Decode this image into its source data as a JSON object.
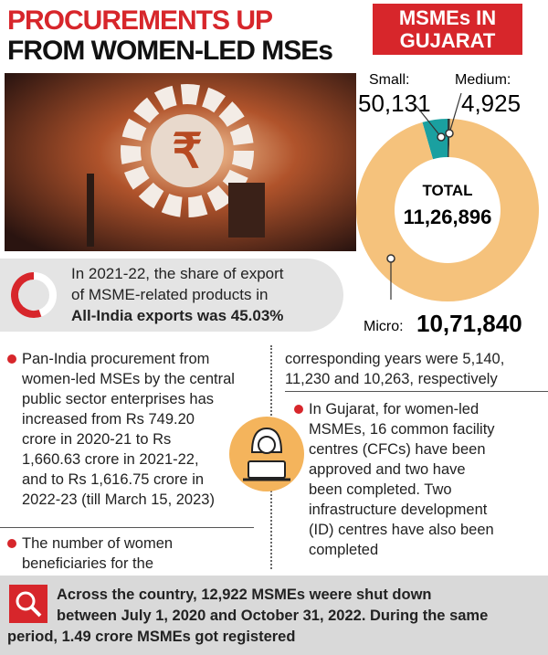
{
  "header": {
    "title_lines": [
      "PROCUREMENTS UP",
      "FROM WOMEN-LED MSEs"
    ],
    "badge_lines": [
      "MSMEs IN",
      "GUJARAT"
    ]
  },
  "chart_data": {
    "type": "pie",
    "categories": [
      "Small:",
      "Medium:",
      "Micro:"
    ],
    "values": [
      50131,
      4925,
      1071840
    ],
    "value_labels": [
      "50,131",
      "4,925",
      "10,71,840"
    ],
    "colors": [
      "#1aa0a0",
      "#2b3a3a",
      "#f5c27c"
    ],
    "center_title": "TOTAL",
    "total": {
      "value": 1126896,
      "label": "11,26,896"
    }
  },
  "export_note": {
    "lines": [
      "In 2021-22, the share of export",
      "of MSME-related products in"
    ],
    "bold_line": "All-India exports was 45.03%"
  },
  "left_column": {
    "bullet1": [
      "Pan-India procurement from",
      "women-led MSEs by the central",
      "public sector enterprises has",
      "increased from Rs 749.20",
      "crore in 2020-21 to Rs",
      "1,660.63 crore in 2021-22,",
      "and to Rs 1,616.75 crore in",
      "2022-23 (till March 15, 2023)"
    ],
    "bullet2": [
      "The number of women",
      "beneficiaries for the"
    ]
  },
  "right_column": {
    "continuation": [
      "corresponding years were 5,140,",
      "11,230 and 10,263, respectively"
    ],
    "bullet3": [
      "In Gujarat, for women-led",
      "MSMEs, 16 common facility",
      "centres (CFCs) have been",
      "approved and two have",
      "been completed. Two",
      "infrastructure development",
      "(ID) centres have also been",
      "completed"
    ]
  },
  "footer": {
    "lines": [
      "Across the country, 12,922 MSMEs weere shut down",
      "between July 1, 2020 and October 31, 2022. During the same",
      "period, 1.49 crore MSMEs got registered"
    ]
  }
}
